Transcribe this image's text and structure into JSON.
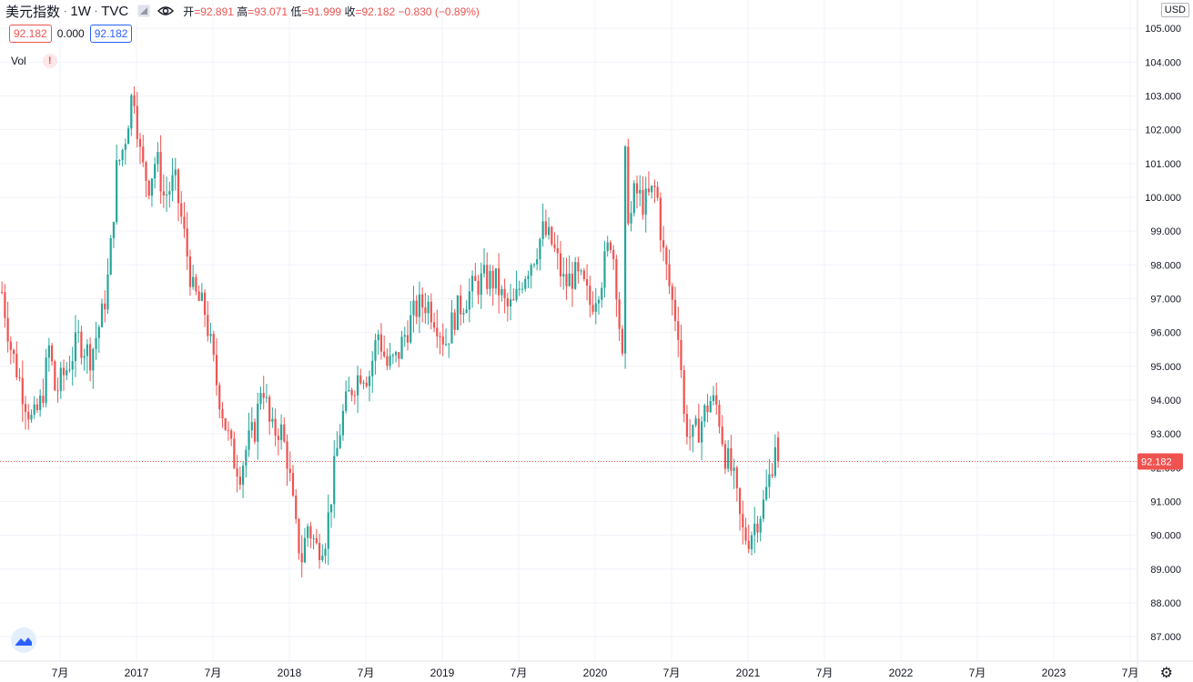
{
  "header": {
    "symbol": "美元指数",
    "interval": "1W",
    "exchange": "TVC",
    "open_label": "开",
    "open": "92.891",
    "high_label": "高",
    "high": "93.071",
    "low_label": "低",
    "low": "91.999",
    "close_label": "收",
    "close": "92.182",
    "change": "−0.830 (−0.89%)"
  },
  "price_pills": {
    "bid": "92.182",
    "spread": "0.000",
    "ask": "92.182"
  },
  "volume": {
    "label": "Vol",
    "warning": "!"
  },
  "currency": "USD",
  "colors": {
    "up": "#26a69a",
    "down": "#ef5350",
    "grid": "#f0f3fa",
    "last_price": "#ef5350"
  },
  "icons": {
    "eye": "eye-icon",
    "flag": "flag-icon",
    "logo": "tradingview-logo-icon",
    "settings": "gear-icon"
  },
  "chart_data": {
    "type": "candlestick",
    "y_ticks": [
      "87.000",
      "88.000",
      "89.000",
      "90.000",
      "91.000",
      "92.000",
      "93.000",
      "94.000",
      "95.000",
      "96.000",
      "97.000",
      "98.000",
      "99.000",
      "100.000",
      "101.000",
      "102.000",
      "103.000",
      "104.000",
      "105.000"
    ],
    "ylim": [
      86.6,
      105.3
    ],
    "x_ticks": [
      {
        "label": "7月",
        "t": 2016.5
      },
      {
        "label": "2017",
        "t": 2017.0
      },
      {
        "label": "7月",
        "t": 2017.5
      },
      {
        "label": "2018",
        "t": 2018.0
      },
      {
        "label": "7月",
        "t": 2018.5
      },
      {
        "label": "2019",
        "t": 2019.0
      },
      {
        "label": "7月",
        "t": 2019.5
      },
      {
        "label": "2020",
        "t": 2020.0
      },
      {
        "label": "7月",
        "t": 2020.5
      },
      {
        "label": "2021",
        "t": 2021.0
      },
      {
        "label": "7月",
        "t": 2021.5
      },
      {
        "label": "2022",
        "t": 2022.0
      },
      {
        "label": "7月",
        "t": 2022.5
      },
      {
        "label": "2023",
        "t": 2023.0
      },
      {
        "label": "7月",
        "t": 2023.5
      }
    ],
    "last_price": 92.182,
    "last_price_label": "92.182",
    "series_start": 2016.12,
    "series_end": 2021.21,
    "anchors": [
      [
        2016.12,
        97.2
      ],
      [
        2016.18,
        95.5
      ],
      [
        2016.26,
        94.2
      ],
      [
        2016.32,
        93.3
      ],
      [
        2016.38,
        94.0
      ],
      [
        2016.43,
        95.6
      ],
      [
        2016.47,
        94.2
      ],
      [
        2016.55,
        95.0
      ],
      [
        2016.62,
        95.8
      ],
      [
        2016.7,
        95.3
      ],
      [
        2016.78,
        96.6
      ],
      [
        2016.82,
        97.8
      ],
      [
        2016.87,
        100.8
      ],
      [
        2016.92,
        101.6
      ],
      [
        2016.98,
        103.3
      ],
      [
        2017.03,
        101.0
      ],
      [
        2017.08,
        100.4
      ],
      [
        2017.13,
        101.2
      ],
      [
        2017.18,
        100.0
      ],
      [
        2017.25,
        100.5
      ],
      [
        2017.3,
        99.2
      ],
      [
        2017.37,
        97.2
      ],
      [
        2017.45,
        96.6
      ],
      [
        2017.52,
        94.6
      ],
      [
        2017.58,
        93.3
      ],
      [
        2017.63,
        92.3
      ],
      [
        2017.68,
        91.9
      ],
      [
        2017.72,
        92.6
      ],
      [
        2017.78,
        93.2
      ],
      [
        2017.82,
        94.7
      ],
      [
        2017.88,
        93.0
      ],
      [
        2017.94,
        93.2
      ],
      [
        2017.99,
        92.2
      ],
      [
        2018.04,
        90.2
      ],
      [
        2018.08,
        89.3
      ],
      [
        2018.12,
        90.3
      ],
      [
        2018.18,
        89.6
      ],
      [
        2018.24,
        90.0
      ],
      [
        2018.29,
        91.8
      ],
      [
        2018.34,
        93.4
      ],
      [
        2018.4,
        94.3
      ],
      [
        2018.47,
        94.9
      ],
      [
        2018.52,
        94.7
      ],
      [
        2018.58,
        96.0
      ],
      [
        2018.64,
        95.0
      ],
      [
        2018.7,
        95.2
      ],
      [
        2018.76,
        96.0
      ],
      [
        2018.83,
        96.7
      ],
      [
        2018.9,
        96.9
      ],
      [
        2018.96,
        96.4
      ],
      [
        2019.02,
        95.7
      ],
      [
        2019.08,
        96.5
      ],
      [
        2019.15,
        97.0
      ],
      [
        2019.22,
        97.4
      ],
      [
        2019.28,
        97.6
      ],
      [
        2019.35,
        97.5
      ],
      [
        2019.42,
        96.7
      ],
      [
        2019.47,
        96.8
      ],
      [
        2019.53,
        97.7
      ],
      [
        2019.6,
        98.3
      ],
      [
        2019.66,
        99.0
      ],
      [
        2019.72,
        98.6
      ],
      [
        2019.8,
        97.4
      ],
      [
        2019.86,
        97.7
      ],
      [
        2019.92,
        97.4
      ],
      [
        2019.97,
        96.8
      ],
      [
        2020.04,
        97.6
      ],
      [
        2020.1,
        98.8
      ],
      [
        2020.13,
        98.0
      ],
      [
        2020.18,
        94.9
      ],
      [
        2020.2,
        102.2
      ],
      [
        2020.22,
        99.0
      ],
      [
        2020.26,
        100.2
      ],
      [
        2020.32,
        99.8
      ],
      [
        2020.4,
        100.3
      ],
      [
        2020.44,
        98.5
      ],
      [
        2020.5,
        97.0
      ],
      [
        2020.55,
        96.0
      ],
      [
        2020.58,
        93.5
      ],
      [
        2020.63,
        92.8
      ],
      [
        2020.68,
        93.2
      ],
      [
        2020.75,
        94.0
      ],
      [
        2020.8,
        93.8
      ],
      [
        2020.85,
        92.4
      ],
      [
        2020.9,
        91.8
      ],
      [
        2020.96,
        90.1
      ],
      [
        2021.0,
        89.9
      ],
      [
        2021.05,
        90.4
      ],
      [
        2021.1,
        90.9
      ],
      [
        2021.15,
        91.9
      ],
      [
        2021.18,
        92.9
      ],
      [
        2021.21,
        92.18
      ]
    ]
  }
}
